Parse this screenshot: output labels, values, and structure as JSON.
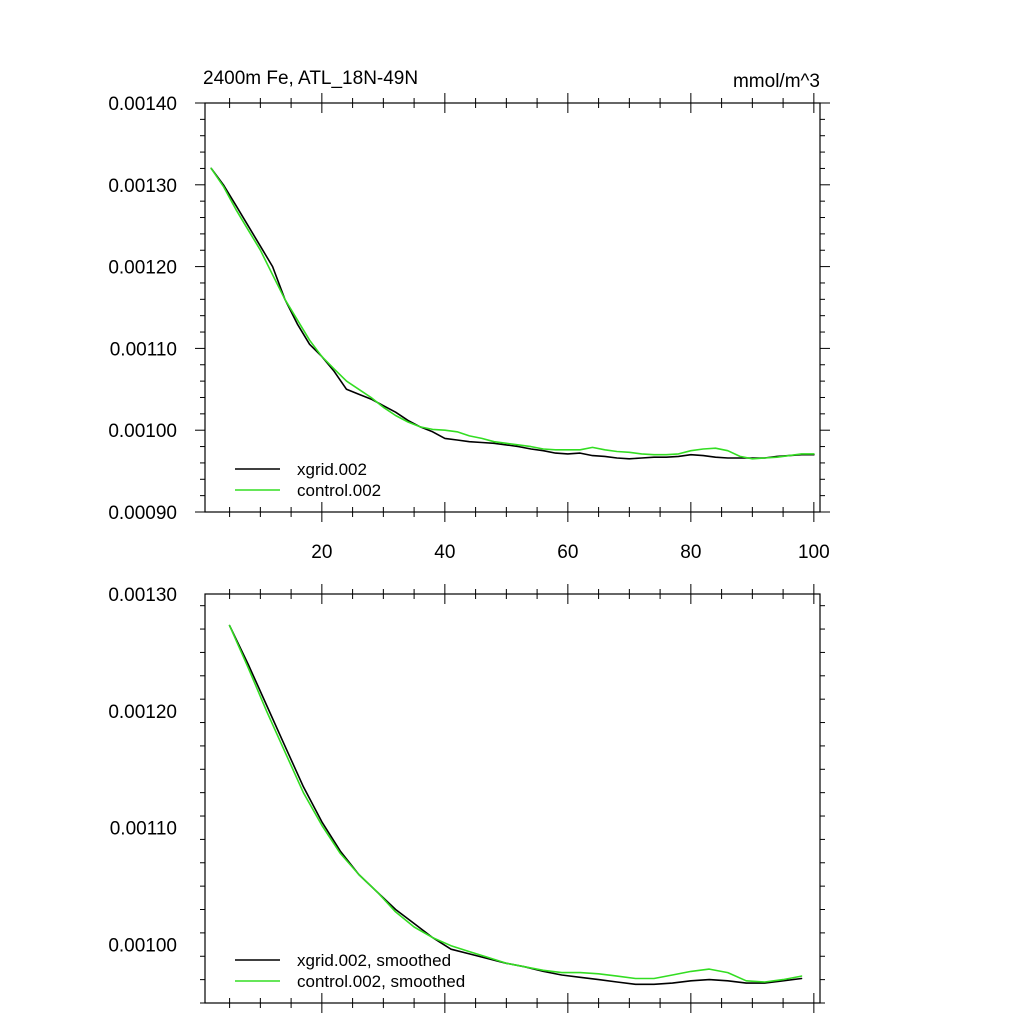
{
  "chart_data": [
    {
      "type": "line",
      "title": "2400m Fe, ATL_18N-49N",
      "units": "mmol/m^3",
      "xlim": [
        1,
        101
      ],
      "ylim": [
        0.0009,
        0.0014
      ],
      "x_ticks": [
        20,
        40,
        60,
        80,
        100
      ],
      "x_tick_labels": [
        "20",
        "40",
        "60",
        "80",
        "100"
      ],
      "y_ticks": [
        0.0009,
        0.001,
        0.0011,
        0.0012,
        0.0013,
        0.0014
      ],
      "y_tick_labels": [
        "0.00090",
        "0.00100",
        "0.00110",
        "0.00120",
        "0.00130",
        "0.00140"
      ],
      "legend_position": "bottom-left",
      "series": [
        {
          "name": "xgrid.002",
          "color": "#000000",
          "x": [
            2,
            4,
            6,
            8,
            10,
            12,
            14,
            16,
            18,
            20,
            22,
            24,
            26,
            28,
            30,
            32,
            34,
            36,
            38,
            40,
            42,
            44,
            46,
            48,
            50,
            52,
            54,
            56,
            58,
            60,
            62,
            64,
            66,
            68,
            70,
            72,
            74,
            76,
            78,
            80,
            82,
            84,
            86,
            88,
            90,
            92,
            94,
            96,
            98,
            100
          ],
          "values": [
            0.00132,
            0.0013,
            0.001275,
            0.00125,
            0.001225,
            0.0012,
            0.00116,
            0.00113,
            0.001105,
            0.00109,
            0.001072,
            0.00105,
            0.001044,
            0.001038,
            0.00103,
            0.001022,
            0.001012,
            0.001004,
            0.000998,
            0.00099,
            0.000988,
            0.000986,
            0.000985,
            0.000984,
            0.000982,
            0.00098,
            0.000977,
            0.000975,
            0.000972,
            0.000971,
            0.000972,
            0.000969,
            0.000968,
            0.000966,
            0.000965,
            0.000966,
            0.000967,
            0.000967,
            0.000968,
            0.00097,
            0.000969,
            0.000967,
            0.000966,
            0.000966,
            0.000966,
            0.000966,
            0.000968,
            0.000969,
            0.00097,
            0.00097
          ]
        },
        {
          "name": "control.002",
          "color": "#33dd22",
          "x": [
            2,
            4,
            6,
            8,
            10,
            12,
            14,
            16,
            18,
            20,
            22,
            24,
            26,
            28,
            30,
            32,
            34,
            36,
            38,
            40,
            42,
            44,
            46,
            48,
            50,
            52,
            54,
            56,
            58,
            60,
            62,
            64,
            66,
            68,
            70,
            72,
            74,
            76,
            78,
            80,
            82,
            84,
            86,
            88,
            90,
            92,
            94,
            96,
            98,
            100
          ],
          "values": [
            0.00132,
            0.001298,
            0.00127,
            0.001245,
            0.00122,
            0.00119,
            0.00116,
            0.001135,
            0.00111,
            0.00109,
            0.001075,
            0.00106,
            0.00105,
            0.00104,
            0.001028,
            0.001018,
            0.00101,
            0.001004,
            0.001001,
            0.001,
            0.000998,
            0.000993,
            0.00099,
            0.000986,
            0.000984,
            0.000982,
            0.00098,
            0.000977,
            0.000976,
            0.000976,
            0.000976,
            0.000979,
            0.000976,
            0.000974,
            0.000973,
            0.000971,
            0.00097,
            0.00097,
            0.000971,
            0.000975,
            0.000977,
            0.000978,
            0.000975,
            0.000968,
            0.000965,
            0.000966,
            0.000967,
            0.000969,
            0.000971,
            0.000971
          ]
        }
      ]
    },
    {
      "type": "line",
      "xlim": [
        1,
        101
      ],
      "ylim": [
        0.00095,
        0.0013
      ],
      "x_ticks": [
        20,
        40,
        60,
        80,
        100
      ],
      "y_ticks": [
        0.001,
        0.0011,
        0.0012,
        0.0013
      ],
      "y_tick_labels": [
        "0.00100",
        "0.00110",
        "0.00120",
        "0.00130"
      ],
      "legend_position": "bottom-left",
      "series": [
        {
          "name": "xgrid.002, smoothed",
          "color": "#000000",
          "x": [
            5,
            8,
            11,
            14,
            17,
            20,
            23,
            26,
            29,
            32,
            35,
            38,
            41,
            44,
            47,
            50,
            53,
            56,
            59,
            62,
            65,
            68,
            71,
            74,
            77,
            80,
            83,
            86,
            89,
            92,
            95,
            98
          ],
          "values": [
            0.001273,
            0.00124,
            0.001205,
            0.00117,
            0.001135,
            0.001105,
            0.00108,
            0.00106,
            0.001045,
            0.00103,
            0.001018,
            0.001006,
            0.000996,
            0.000992,
            0.000988,
            0.000984,
            0.000981,
            0.000977,
            0.000974,
            0.000972,
            0.00097,
            0.000968,
            0.000966,
            0.000966,
            0.000967,
            0.000969,
            0.00097,
            0.000969,
            0.000967,
            0.000967,
            0.000969,
            0.000971
          ]
        },
        {
          "name": "control.002, smoothed",
          "color": "#33dd22",
          "x": [
            5,
            8,
            11,
            14,
            17,
            20,
            23,
            26,
            29,
            32,
            35,
            38,
            41,
            44,
            47,
            50,
            53,
            56,
            59,
            62,
            65,
            68,
            71,
            74,
            77,
            80,
            83,
            86,
            89,
            92,
            95,
            98
          ],
          "values": [
            0.001273,
            0.001237,
            0.0012,
            0.001165,
            0.00113,
            0.001102,
            0.001078,
            0.00106,
            0.001045,
            0.001028,
            0.001015,
            0.001006,
            0.000999,
            0.000994,
            0.000989,
            0.000984,
            0.000981,
            0.000978,
            0.000976,
            0.000976,
            0.000975,
            0.000973,
            0.000971,
            0.000971,
            0.000974,
            0.000977,
            0.000979,
            0.000976,
            0.000969,
            0.000968,
            0.00097,
            0.000973
          ]
        }
      ]
    }
  ]
}
